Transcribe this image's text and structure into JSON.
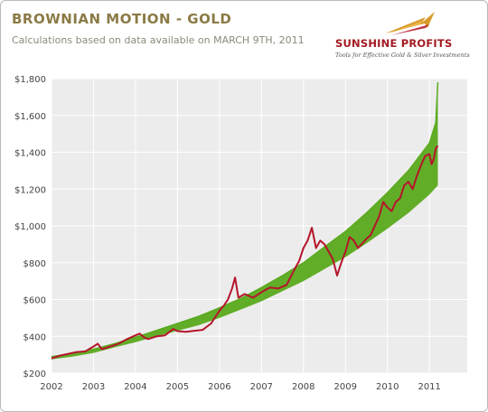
{
  "header": {
    "title": "BROWNIAN MOTION - GOLD",
    "subtitle": "Calculations based on data available on MARCH 9TH, 2011"
  },
  "logo": {
    "brand": "SUNSHINE PROFITS",
    "tagline": "Tools for Effective Gold & Silver Investments",
    "icon": "sunshine-arrow-logo"
  },
  "colors": {
    "simulated": "#5aaa1e",
    "actual": "#b5152b",
    "plot_bg": "#ececec",
    "grid": "#ffffff",
    "title": "#8a7a45"
  },
  "chart_data": {
    "type": "line",
    "title": "BROWNIAN MOTION - GOLD",
    "subtitle": "Calculations based on data available on MARCH 9TH, 2011",
    "xlabel": "",
    "ylabel": "",
    "xlim": [
      2002,
      2011.9
    ],
    "ylim": [
      200,
      1800
    ],
    "x_ticks": [
      2002,
      2003,
      2004,
      2005,
      2006,
      2007,
      2008,
      2009,
      2010,
      2011
    ],
    "x_tick_labels": [
      "2002",
      "2003",
      "2004",
      "2005",
      "2006",
      "2007",
      "2008",
      "2009",
      "2010",
      "2011"
    ],
    "y_ticks": [
      200,
      400,
      600,
      800,
      1000,
      1200,
      1400,
      1600,
      1800
    ],
    "y_tick_labels": [
      "$200",
      "$400",
      "$600",
      "$800",
      "$1,000",
      "$1,200",
      "$1,400",
      "$1,600",
      "$1,800"
    ],
    "grid": true,
    "legend": "none",
    "series": [
      {
        "color": "#5aaa1e",
        "band_low": [
          [
            2002.0,
            275
          ],
          [
            2002.5,
            290
          ],
          [
            2003.0,
            310
          ],
          [
            2003.5,
            340
          ],
          [
            2004.0,
            368
          ],
          [
            2004.5,
            400
          ],
          [
            2005.0,
            430
          ],
          [
            2005.5,
            460
          ],
          [
            2006.0,
            500
          ],
          [
            2006.5,
            545
          ],
          [
            2007.0,
            590
          ],
          [
            2007.5,
            645
          ],
          [
            2008.0,
            700
          ],
          [
            2008.5,
            765
          ],
          [
            2009.0,
            830
          ],
          [
            2009.5,
            905
          ],
          [
            2010.0,
            985
          ],
          [
            2010.5,
            1070
          ],
          [
            2011.0,
            1170
          ],
          [
            2011.2,
            1220
          ]
        ],
        "band_high": [
          [
            2002.0,
            290
          ],
          [
            2002.5,
            306
          ],
          [
            2003.0,
            330
          ],
          [
            2003.5,
            360
          ],
          [
            2004.0,
            395
          ],
          [
            2004.5,
            432
          ],
          [
            2005.0,
            470
          ],
          [
            2005.5,
            508
          ],
          [
            2006.0,
            555
          ],
          [
            2006.5,
            605
          ],
          [
            2007.0,
            665
          ],
          [
            2007.5,
            730
          ],
          [
            2008.0,
            800
          ],
          [
            2008.5,
            885
          ],
          [
            2009.0,
            970
          ],
          [
            2009.5,
            1070
          ],
          [
            2010.0,
            1180
          ],
          [
            2010.5,
            1300
          ],
          [
            2011.0,
            1450
          ],
          [
            2011.15,
            1560
          ],
          [
            2011.2,
            1780
          ]
        ]
      },
      {
        "color": "#b5152b",
        "points": [
          [
            2002.0,
            280
          ],
          [
            2002.2,
            295
          ],
          [
            2002.4,
            305
          ],
          [
            2002.6,
            315
          ],
          [
            2002.8,
            318
          ],
          [
            2003.0,
            345
          ],
          [
            2003.1,
            360
          ],
          [
            2003.2,
            330
          ],
          [
            2003.4,
            345
          ],
          [
            2003.6,
            360
          ],
          [
            2003.8,
            385
          ],
          [
            2004.0,
            405
          ],
          [
            2004.1,
            415
          ],
          [
            2004.2,
            395
          ],
          [
            2004.3,
            385
          ],
          [
            2004.5,
            400
          ],
          [
            2004.7,
            405
          ],
          [
            2004.9,
            440
          ],
          [
            2005.0,
            428
          ],
          [
            2005.2,
            425
          ],
          [
            2005.4,
            430
          ],
          [
            2005.6,
            435
          ],
          [
            2005.8,
            470
          ],
          [
            2006.0,
            540
          ],
          [
            2006.1,
            565
          ],
          [
            2006.2,
            600
          ],
          [
            2006.3,
            660
          ],
          [
            2006.37,
            720
          ],
          [
            2006.45,
            610
          ],
          [
            2006.6,
            630
          ],
          [
            2006.8,
            610
          ],
          [
            2007.0,
            640
          ],
          [
            2007.2,
            665
          ],
          [
            2007.4,
            660
          ],
          [
            2007.6,
            680
          ],
          [
            2007.8,
            770
          ],
          [
            2007.9,
            810
          ],
          [
            2008.0,
            880
          ],
          [
            2008.1,
            920
          ],
          [
            2008.2,
            990
          ],
          [
            2008.3,
            880
          ],
          [
            2008.4,
            920
          ],
          [
            2008.5,
            900
          ],
          [
            2008.6,
            860
          ],
          [
            2008.7,
            820
          ],
          [
            2008.8,
            730
          ],
          [
            2008.9,
            800
          ],
          [
            2009.0,
            860
          ],
          [
            2009.1,
            940
          ],
          [
            2009.2,
            920
          ],
          [
            2009.3,
            880
          ],
          [
            2009.5,
            930
          ],
          [
            2009.6,
            950
          ],
          [
            2009.8,
            1050
          ],
          [
            2009.9,
            1130
          ],
          [
            2010.0,
            1100
          ],
          [
            2010.1,
            1080
          ],
          [
            2010.2,
            1130
          ],
          [
            2010.3,
            1150
          ],
          [
            2010.4,
            1220
          ],
          [
            2010.5,
            1240
          ],
          [
            2010.6,
            1200
          ],
          [
            2010.7,
            1270
          ],
          [
            2010.8,
            1330
          ],
          [
            2010.9,
            1380
          ],
          [
            2011.0,
            1390
          ],
          [
            2011.05,
            1335
          ],
          [
            2011.1,
            1360
          ],
          [
            2011.15,
            1420
          ],
          [
            2011.2,
            1435
          ]
        ]
      }
    ]
  }
}
